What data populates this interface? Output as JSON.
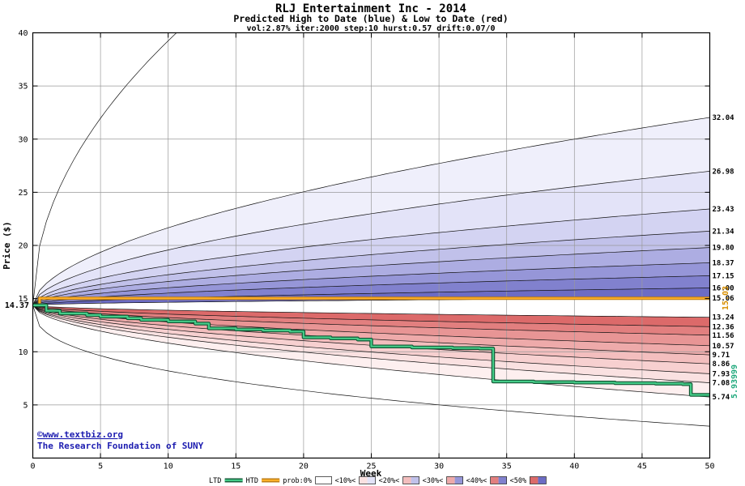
{
  "header": {
    "title": "RLJ Entertainment Inc - 2014",
    "subtitle": "Predicted High to Date (blue) &  Low to Date (red)",
    "params": "vol:2.87% iter:2000 step:10 hurst:0.57 drift:0.07/0"
  },
  "watermark": {
    "link": "©www.textbiz.org",
    "org": "The Research Foundation of SUNY"
  },
  "labels": {
    "start_price": "14.37",
    "htd_final": "15.03",
    "ltd_final": "5.93999"
  },
  "legend": {
    "ltd": "LTD",
    "htd": "HTD",
    "prob_labels": [
      "prob:0%",
      "<10%<",
      "<20%<",
      "<30%<",
      "<40%<",
      "<50%"
    ],
    "swatches": [
      {
        "red": "#ffffff",
        "blue": "#ffffff"
      },
      {
        "red": "#fae1e1",
        "blue": "#e3e3f8"
      },
      {
        "red": "#f3bebe",
        "blue": "#c1c1ea"
      },
      {
        "red": "#eeaaaa",
        "blue": "#9696d8"
      },
      {
        "red": "#e27f7f",
        "blue": "#8181ce"
      },
      {
        "red": "#dc6a6a",
        "blue": "#6c6cc4"
      }
    ]
  },
  "colors": {
    "grid": "#999999",
    "fan_line": "#111111",
    "htd": "#ffb028",
    "htd_edge": "#b87a10",
    "ltd": "#44cc88",
    "ltd_edge": "#115533",
    "blue_bands": [
      "#efeffb",
      "#e3e3f8",
      "#d3d3f2",
      "#c1c1ea",
      "#adade2",
      "#9696d8",
      "#8181ce",
      "#6c6cc4"
    ],
    "red_bands": [
      "#dc6a6a",
      "#e27f7f",
      "#e89595",
      "#eeaaaa",
      "#f3bebe",
      "#f7d0d0",
      "#fae1e1",
      "#fdefef"
    ]
  },
  "chart_data": {
    "type": "area",
    "title": "RLJ Entertainment Inc - 2014",
    "x": {
      "label": "Week",
      "min": 0,
      "max": 50,
      "ticks": [
        0,
        5,
        10,
        15,
        20,
        25,
        30,
        35,
        40,
        45,
        50
      ]
    },
    "y": {
      "label": "Price ($)",
      "min": 0,
      "max": 40,
      "ticks": [
        5,
        10,
        15,
        20,
        25,
        30,
        35,
        40
      ]
    },
    "start_week": 0,
    "start_price": 14.37,
    "curve_power": 0.55,
    "extreme_power_high": 0.5,
    "extreme_power_low": 0.38,
    "high_extreme_end": 70,
    "low_extreme_end": 3.0,
    "high_lines": [
      {
        "end": 32.04,
        "label": "32.04"
      },
      {
        "end": 26.98,
        "label": "26.98"
      },
      {
        "end": 23.43,
        "label": "23.43"
      },
      {
        "end": 21.34,
        "label": "21.34"
      },
      {
        "end": 19.8,
        "label": "19.80"
      },
      {
        "end": 18.37,
        "label": "18.37"
      },
      {
        "end": 17.15,
        "label": "17.15"
      },
      {
        "end": 16.0,
        "label": "16.00"
      },
      {
        "end": 15.06,
        "label": "15.06"
      }
    ],
    "low_lines": [
      {
        "end": 13.24,
        "label": "13.24"
      },
      {
        "end": 12.36,
        "label": "12.36"
      },
      {
        "end": 11.56,
        "label": "11.56"
      },
      {
        "end": 10.57,
        "label": "10.57"
      },
      {
        "end": 9.71,
        "label": "9.71"
      },
      {
        "end": 8.86,
        "label": "8.86"
      },
      {
        "end": 7.93,
        "label": "7.93"
      },
      {
        "end": 7.08,
        "label": "7.08"
      },
      {
        "end": 5.74,
        "label": "5.74"
      }
    ],
    "htd_final": 15.03,
    "ltd_final": 5.93999,
    "htd_steps": [
      [
        0,
        14.37
      ],
      [
        0.5,
        15.03
      ],
      [
        50,
        15.03
      ]
    ],
    "ltd_steps": [
      [
        0,
        14.37
      ],
      [
        1,
        13.85
      ],
      [
        2,
        13.6
      ],
      [
        4,
        13.45
      ],
      [
        5,
        13.3
      ],
      [
        7,
        13.15
      ],
      [
        8,
        13.0
      ],
      [
        10,
        12.85
      ],
      [
        12,
        12.65
      ],
      [
        13,
        12.2
      ],
      [
        15,
        12.1
      ],
      [
        17,
        12.0
      ],
      [
        19,
        11.9
      ],
      [
        20,
        11.35
      ],
      [
        22,
        11.25
      ],
      [
        24,
        11.15
      ],
      [
        25,
        10.5
      ],
      [
        28,
        10.4
      ],
      [
        31,
        10.35
      ],
      [
        33,
        10.3
      ],
      [
        34,
        7.2
      ],
      [
        37,
        7.15
      ],
      [
        40,
        7.1
      ],
      [
        43,
        7.05
      ],
      [
        46,
        7.0
      ],
      [
        48,
        6.95
      ],
      [
        48.6,
        5.94
      ],
      [
        50,
        5.94
      ]
    ]
  }
}
